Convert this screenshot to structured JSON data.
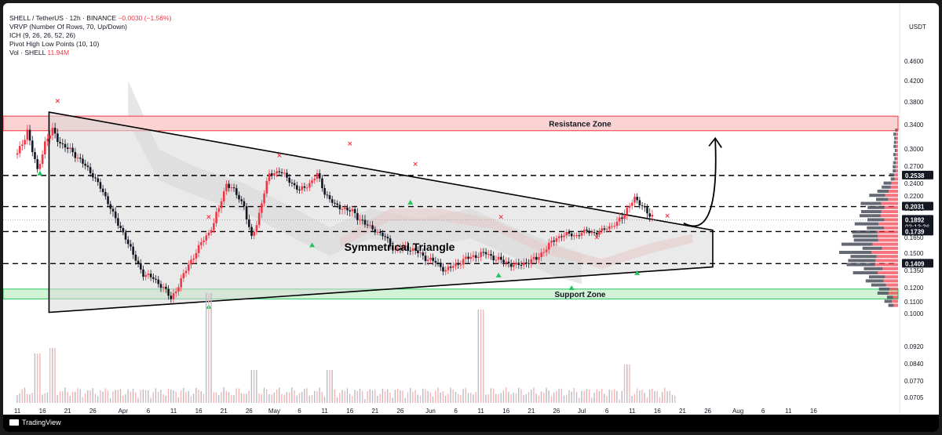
{
  "legend": {
    "line1": "SHELL / TetherUS · 12h · BINANCE",
    "change": "−0.0030 (−1.56%)",
    "line2": "VRVP (Number Of Rows, 70, Up/Down)",
    "line3": "ICH (9, 26, 26, 52, 26)",
    "line4": "Pivot High Low Points (10, 10)",
    "vol_label": "Vol · SHELL",
    "vol_value": "11.94M"
  },
  "axis_unit": "USDT",
  "brand": "TradingView",
  "colors": {
    "up": "#f23645",
    "down": "#131722",
    "resistance": "#f23645",
    "support": "#22c55e",
    "triangle_fill": "#d9d9d9",
    "pivot_low": "#22c55e",
    "pivot_high": "#f23645"
  },
  "chart_data": {
    "type": "candlestick",
    "price_ticks": [
      "0.4600",
      "0.4200",
      "0.3800",
      "0.3400",
      "0.3000",
      "0.2700",
      "0.2400",
      "0.2200",
      "0.2000",
      "0.1850",
      "0.1650",
      "0.1500",
      "0.1350",
      "0.1200",
      "0.1100",
      "0.1000",
      "0.0920",
      "0.0840",
      "0.0770",
      "0.0705"
    ],
    "price_labels": [
      {
        "label": "0.2538",
        "value": 0.2538
      },
      {
        "label": "0.2031",
        "value": 0.2031
      },
      {
        "label": "0.1892",
        "value": 0.1892,
        "sub": "03:13:36"
      },
      {
        "label": "0.1739",
        "value": 0.1739
      },
      {
        "label": "0.1409",
        "value": 0.1409
      }
    ],
    "x_ticks": [
      "11",
      "16",
      "21",
      "26",
      "Apr",
      "6",
      "11",
      "16",
      "21",
      "26",
      "May",
      "6",
      "11",
      "16",
      "21",
      "26",
      "Jun",
      "6",
      "11",
      "16",
      "21",
      "26",
      "Jul",
      "6",
      "11",
      "16",
      "21",
      "26",
      "Aug",
      "6",
      "11",
      "16"
    ],
    "x_tick_days": [
      0,
      5,
      10,
      15,
      21,
      26,
      31,
      36,
      41,
      46,
      51,
      56,
      61,
      66,
      71,
      76,
      82,
      87,
      92,
      97,
      102,
      107,
      112,
      117,
      122,
      127,
      132,
      137,
      143,
      148,
      153,
      158
    ],
    "zones": [
      {
        "label": "Resistance Zone",
        "from": 0.33,
        "to": 0.355
      },
      {
        "label": "Support Zone",
        "from": 0.112,
        "to": 0.119
      }
    ],
    "levels": [
      0.2538,
      0.2031,
      0.1739,
      0.1409
    ],
    "pattern_label": "Symmetrical Triangle",
    "triangle": {
      "upper_start": {
        "day": 6.3,
        "price": 0.362
      },
      "upper_end": {
        "day": 138,
        "price": 0.176
      },
      "lower_start": {
        "day": 6.3,
        "price": 0.101
      },
      "lower_end": {
        "day": 138,
        "price": 0.138
      }
    },
    "projection": {
      "from": {
        "day": 133,
        "price": 0.186
      },
      "to": {
        "day": 138.5,
        "price": 0.315
      }
    },
    "close_points": [
      [
        0,
        0.29
      ],
      [
        2,
        0.33
      ],
      [
        4,
        0.262
      ],
      [
        5.5,
        0.31
      ],
      [
        7,
        0.33
      ],
      [
        9,
        0.305
      ],
      [
        11,
        0.295
      ],
      [
        13,
        0.275
      ],
      [
        15,
        0.255
      ],
      [
        17,
        0.225
      ],
      [
        19,
        0.195
      ],
      [
        21,
        0.172
      ],
      [
        23,
        0.148
      ],
      [
        25,
        0.132
      ],
      [
        27,
        0.128
      ],
      [
        29,
        0.12
      ],
      [
        30.5,
        0.112
      ],
      [
        32,
        0.122
      ],
      [
        34,
        0.14
      ],
      [
        36,
        0.155
      ],
      [
        38,
        0.172
      ],
      [
        40,
        0.2
      ],
      [
        41.5,
        0.24
      ],
      [
        43,
        0.228
      ],
      [
        45,
        0.205
      ],
      [
        46.5,
        0.165
      ],
      [
        48,
        0.195
      ],
      [
        50,
        0.255
      ],
      [
        52,
        0.262
      ],
      [
        54,
        0.245
      ],
      [
        56,
        0.228
      ],
      [
        58,
        0.24
      ],
      [
        59.5,
        0.255
      ],
      [
        61,
        0.225
      ],
      [
        63,
        0.205
      ],
      [
        65,
        0.2
      ],
      [
        67,
        0.195
      ],
      [
        69,
        0.185
      ],
      [
        71,
        0.176
      ],
      [
        73,
        0.165
      ],
      [
        75,
        0.153
      ],
      [
        77,
        0.156
      ],
      [
        79,
        0.152
      ],
      [
        81,
        0.146
      ],
      [
        83,
        0.142
      ],
      [
        85,
        0.135
      ],
      [
        87,
        0.14
      ],
      [
        89,
        0.145
      ],
      [
        91,
        0.148
      ],
      [
        93,
        0.15
      ],
      [
        95,
        0.145
      ],
      [
        97,
        0.142
      ],
      [
        99,
        0.139
      ],
      [
        101,
        0.142
      ],
      [
        103,
        0.145
      ],
      [
        105,
        0.155
      ],
      [
        107,
        0.165
      ],
      [
        109,
        0.17
      ],
      [
        111,
        0.168
      ],
      [
        113,
        0.175
      ],
      [
        115,
        0.171
      ],
      [
        117,
        0.18
      ],
      [
        119,
        0.185
      ],
      [
        121,
        0.2
      ],
      [
        122.5,
        0.215
      ],
      [
        124,
        0.205
      ],
      [
        125.5,
        0.192
      ],
      [
        126.5,
        0.1892
      ]
    ],
    "pivot_highs": [
      [
        8,
        0.378
      ],
      [
        38,
        0.19
      ],
      [
        52,
        0.285
      ],
      [
        66,
        0.305
      ],
      [
        79,
        0.27
      ],
      [
        96,
        0.19
      ],
      [
        115,
        0.163
      ],
      [
        129,
        0.191
      ]
    ],
    "pivot_lows": [
      [
        4.5,
        0.258
      ],
      [
        38,
        0.106
      ],
      [
        58.5,
        0.158
      ],
      [
        78,
        0.21
      ],
      [
        95.5,
        0.131
      ],
      [
        110,
        0.12
      ],
      [
        123,
        0.133
      ]
    ],
    "volume_spikes": [
      [
        38,
        1.0
      ],
      [
        92,
        0.85
      ],
      [
        135,
        0.72
      ],
      [
        121,
        0.35
      ],
      [
        62,
        0.3
      ],
      [
        47,
        0.3
      ],
      [
        4,
        0.45
      ],
      [
        7,
        0.5
      ]
    ]
  }
}
